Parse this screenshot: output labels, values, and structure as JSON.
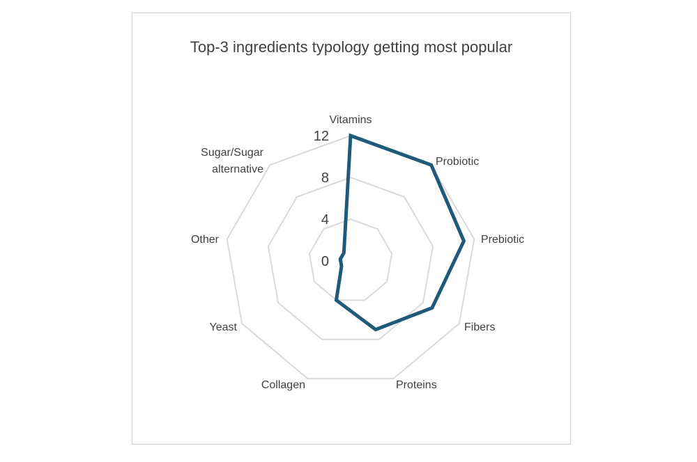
{
  "chart_data": {
    "type": "radar",
    "title": "Top-3 ingredients typology getting most popular",
    "categories": [
      "Vitamins",
      "Probiotic",
      "Prebiotic",
      "Fibers",
      "Proteins",
      "Collagen",
      "Yeast",
      "Other",
      "Sugar/Sugar alternative"
    ],
    "series": [
      {
        "values": [
          12,
          12,
          11,
          9,
          7,
          4,
          1,
          1,
          1
        ]
      }
    ],
    "rlim": [
      0,
      12
    ],
    "ticks": [
      0,
      4,
      8,
      12
    ],
    "grid": true,
    "legend": "none",
    "colors": {
      "series": "#1f5a7a",
      "grid": "#d9d9d9",
      "text": "#404040"
    }
  }
}
